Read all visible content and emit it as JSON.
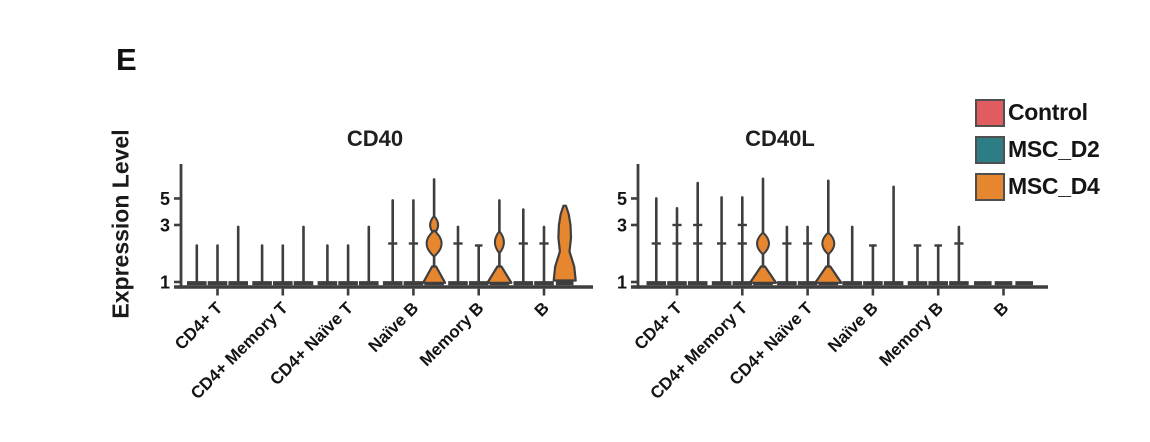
{
  "panel_label": "E",
  "ylabel": "Expression Level",
  "legend": {
    "items": [
      {
        "label": "Control",
        "color": "#E05C5F"
      },
      {
        "label": "MSC_D2",
        "color": "#2C7E84"
      },
      {
        "label": "MSC_D4",
        "color": "#E6862F"
      }
    ]
  },
  "chart_data": {
    "type": "violin",
    "ylabel": "Expression Level",
    "scale": "log-like",
    "yticks": [
      5,
      3,
      1
    ],
    "ylim": [
      1,
      8
    ],
    "grid": false,
    "legend_position": "top-right",
    "conditions": [
      "Control",
      "MSC_D2",
      "MSC_D4"
    ],
    "condition_colors": [
      "#E05C5F",
      "#2C7E84",
      "#E6862F"
    ],
    "categories": [
      "CD4+ T",
      "CD4+ Memory T",
      "CD4+ Naïve T",
      "Naïve B",
      "Memory B",
      "B"
    ],
    "encoding_note": "max = top of expression spike; cross = quartile tick levels; bulges = density bulges [level, halfwidth, halfheight]; base_tri = wide low-expression base; blob = full violin profile [level, halfwidth]",
    "panels": [
      {
        "title": "CD40",
        "groups": [
          {
            "label": "CD4+ T",
            "violins": [
              {
                "max": 2.1
              },
              {
                "max": 2.1
              },
              {
                "max": 3.0
              }
            ]
          },
          {
            "label": "CD4+ Memory T",
            "violins": [
              {
                "max": 2.1
              },
              {
                "max": 2.1
              },
              {
                "max": 3.0
              }
            ]
          },
          {
            "label": "CD4+ Naïve T",
            "violins": [
              {
                "max": 2.1
              },
              {
                "max": 2.1
              },
              {
                "max": 3.0
              }
            ]
          },
          {
            "label": "Naïve B",
            "violins": [
              {
                "max": 5.0,
                "cross": [
                  2.1
                ]
              },
              {
                "max": 5.0,
                "cross": [
                  2.1
                ]
              },
              {
                "max": 7.5,
                "bulges": [
                  [
                    3.0,
                    4,
                    9
                  ],
                  [
                    2.1,
                    7.5,
                    13
                  ]
                ],
                "base_tri": 11
              }
            ]
          },
          {
            "label": "Memory B",
            "violins": [
              {
                "max": 3.0,
                "cross": [
                  2.1
                ]
              },
              {
                "max": 2.1,
                "cap": true
              },
              {
                "max": 5.0,
                "bulges": [
                  [
                    2.15,
                    4.5,
                    11
                  ]
                ],
                "base_tri": 12
              }
            ]
          },
          {
            "label": "B",
            "violins": [
              {
                "max": 4.2,
                "cross": [
                  2.1
                ]
              },
              {
                "max": 3.0,
                "cross": [
                  2.1
                ]
              },
              {
                "blob": [
                  [
                    4.35,
                    1.2
                  ],
                  [
                    3.7,
                    4.0
                  ],
                  [
                    3.0,
                    5.8
                  ],
                  [
                    2.35,
                    6.3
                  ],
                  [
                    1.8,
                    4.8
                  ],
                  [
                    1.35,
                    9.5
                  ],
                  [
                    1.03,
                    11
                  ]
                ]
              }
            ]
          }
        ]
      },
      {
        "title": "CD40L",
        "groups": [
          {
            "label": "CD4+ T",
            "violins": [
              {
                "max": 5.2,
                "cross": [
                  2.1
                ]
              },
              {
                "max": 4.3,
                "cross": [
                  2.1,
                  3.0
                ]
              },
              {
                "max": 7.0,
                "cross": [
                  2.1,
                  3.0
                ]
              }
            ]
          },
          {
            "label": "CD4+ Memory T",
            "violins": [
              {
                "max": 5.3,
                "cross": [
                  2.1
                ]
              },
              {
                "max": 5.3,
                "cross": [
                  2.1,
                  3.0
                ]
              },
              {
                "max": 7.6,
                "bulges": [
                  [
                    2.1,
                    6,
                    11
                  ]
                ],
                "base_tri": 13
              }
            ]
          },
          {
            "label": "CD4+ Naïve T",
            "violins": [
              {
                "max": 3.0,
                "cross": [
                  2.1
                ]
              },
              {
                "max": 3.0,
                "cross": [
                  2.1
                ]
              },
              {
                "max": 7.3,
                "bulges": [
                  [
                    2.1,
                    6,
                    11
                  ]
                ],
                "base_tri": 13
              }
            ]
          },
          {
            "label": "Naïve B",
            "violins": [
              {
                "max": 3.0
              },
              {
                "max": 2.1,
                "cap": true
              },
              {
                "max": 6.5
              }
            ]
          },
          {
            "label": "Memory B",
            "violins": [
              {
                "max": 2.1,
                "cap": true
              },
              {
                "max": 2.1,
                "cap": true
              },
              {
                "max": 3.0,
                "cross": [
                  2.1
                ]
              }
            ]
          },
          {
            "label": "B",
            "violins": [
              {
                "max": null
              },
              {
                "max": null
              },
              {
                "max": null
              }
            ]
          }
        ]
      }
    ]
  }
}
